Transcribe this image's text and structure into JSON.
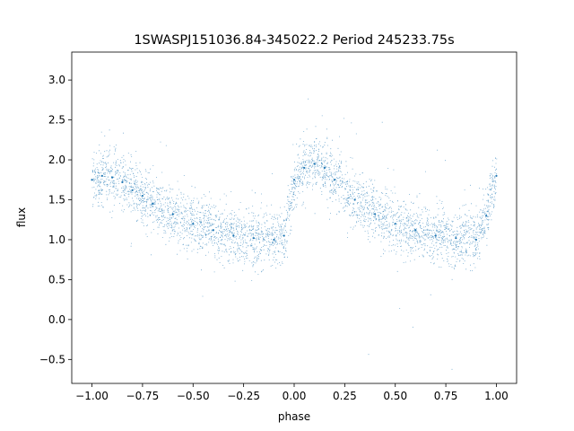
{
  "chart_data": {
    "type": "scatter",
    "title": "1SWASPJ151036.84-345022.2 Period 245233.75s",
    "xlabel": "phase",
    "ylabel": "flux",
    "xlim": [
      -1.1,
      1.1
    ],
    "ylim": [
      -0.8,
      3.35
    ],
    "x_ticks": [
      -1.0,
      -0.75,
      -0.5,
      -0.25,
      0.0,
      0.25,
      0.5,
      0.75,
      1.0
    ],
    "x_tick_labels": [
      "−1.00",
      "−0.75",
      "−0.50",
      "−0.25",
      "0.00",
      "0.25",
      "0.50",
      "0.75",
      "1.00"
    ],
    "y_ticks": [
      -0.5,
      0.0,
      0.5,
      1.0,
      1.5,
      2.0,
      2.5,
      3.0
    ],
    "y_tick_labels": [
      "−0.5",
      "0.0",
      "0.5",
      "1.0",
      "1.5",
      "2.0",
      "2.5",
      "3.0"
    ],
    "grid": false,
    "marker_color": "#1f77b4",
    "series": [
      {
        "x": [
          -1.0,
          -0.95,
          -0.9,
          -0.85,
          -0.8,
          -0.75,
          -0.7,
          -0.6,
          -0.5,
          -0.4,
          -0.3,
          -0.2,
          -0.1,
          -0.05,
          0.0,
          0.05,
          0.1,
          0.15,
          0.2,
          0.3,
          0.4,
          0.5,
          0.6,
          0.7,
          0.8,
          0.9,
          0.95,
          1.0
        ],
        "y": [
          1.75,
          1.8,
          1.78,
          1.72,
          1.62,
          1.55,
          1.45,
          1.32,
          1.2,
          1.12,
          1.05,
          1.02,
          1.0,
          1.05,
          1.75,
          1.9,
          1.95,
          1.9,
          1.75,
          1.5,
          1.32,
          1.2,
          1.12,
          1.05,
          1.02,
          1.0,
          1.3,
          1.8
        ]
      }
    ]
  }
}
